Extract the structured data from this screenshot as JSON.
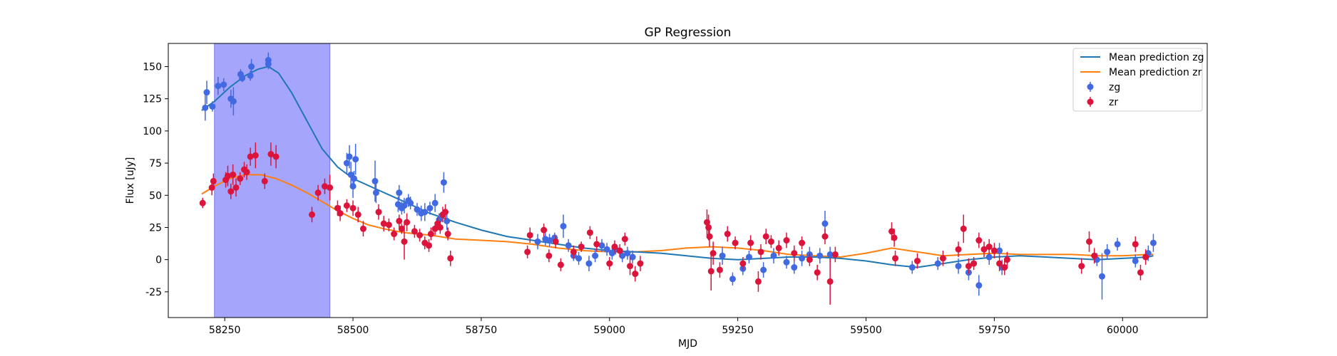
{
  "chart_data": {
    "type": "scatter",
    "title": "GP Regression",
    "xlabel": "MJD",
    "ylabel": "Flux [uJy]",
    "xlim": [
      58140,
      60165
    ],
    "ylim": [
      -45,
      168
    ],
    "xticks": [
      58250,
      58500,
      58750,
      59000,
      59250,
      59500,
      59750,
      60000
    ],
    "yticks": [
      -25,
      0,
      25,
      50,
      75,
      100,
      125,
      150
    ],
    "grid": false,
    "legend_position": "upper right",
    "highlight_span": {
      "x0": 58230,
      "x1": 58455,
      "color": "#a5a5fb"
    },
    "legend": [
      "Mean prediction zg",
      "Mean prediction zr",
      "zg",
      "zr"
    ],
    "series": [
      {
        "name": "Mean prediction zg",
        "kind": "line",
        "color": "#1f77b4",
        "x": [
          58205,
          58230,
          58260,
          58290,
          58315,
          58335,
          58355,
          58380,
          58410,
          58440,
          58470,
          58500,
          58550,
          58600,
          58650,
          58700,
          58750,
          58800,
          58850,
          58900,
          58950,
          59000,
          59050,
          59100,
          59150,
          59200,
          59250,
          59300,
          59350,
          59400,
          59450,
          59500,
          59550,
          59600,
          59650,
          59700,
          59750,
          59800,
          59850,
          59900,
          59950,
          60000,
          60050,
          60060
        ],
        "y": [
          116,
          123,
          134,
          143,
          148,
          150,
          145,
          130,
          108,
          86,
          72,
          63,
          54,
          45,
          36,
          29,
          23,
          18,
          15,
          12,
          9,
          7,
          6,
          5,
          3,
          1,
          0,
          1,
          2,
          2,
          1,
          -1,
          -4,
          -6,
          -3,
          0,
          2,
          3,
          2,
          1,
          0,
          1,
          2,
          3
        ]
      },
      {
        "name": "Mean prediction zr",
        "kind": "line",
        "color": "#ff7f0e",
        "x": [
          58205,
          58230,
          58260,
          58290,
          58320,
          58350,
          58380,
          58410,
          58440,
          58470,
          58500,
          58530,
          58560,
          58600,
          58650,
          58700,
          58750,
          58800,
          58850,
          58900,
          58950,
          59000,
          59050,
          59100,
          59150,
          59200,
          59250,
          59300,
          59350,
          59400,
          59450,
          59500,
          59550,
          59600,
          59650,
          59700,
          59750,
          59800,
          59850,
          59900,
          59950,
          60000,
          60050,
          60060
        ],
        "y": [
          51,
          57,
          63,
          66,
          66,
          63,
          58,
          52,
          45,
          38,
          32,
          27,
          24,
          21,
          19,
          16,
          15,
          14,
          12,
          9,
          7,
          6,
          6,
          7,
          9,
          10,
          9,
          7,
          4,
          3,
          2,
          5,
          9,
          6,
          3,
          4,
          5,
          4,
          4,
          4,
          3,
          3,
          4,
          4
        ]
      },
      {
        "name": "zg",
        "kind": "errorbar",
        "color": "#4169e1",
        "points": [
          [
            58212,
            118,
            10
          ],
          [
            58215,
            130,
            9
          ],
          [
            58226,
            119,
            4
          ],
          [
            58237,
            135,
            7
          ],
          [
            58248,
            136,
            5
          ],
          [
            58262,
            125,
            7
          ],
          [
            58267,
            123,
            11
          ],
          [
            58281,
            144,
            4
          ],
          [
            58284,
            141,
            3
          ],
          [
            58300,
            143,
            4
          ],
          [
            58302,
            150,
            6
          ],
          [
            58335,
            155,
            6
          ],
          [
            58335,
            152,
            4
          ],
          [
            58488,
            75,
            8
          ],
          [
            58493,
            80,
            9
          ],
          [
            58496,
            66,
            10
          ],
          [
            58500,
            57,
            9
          ],
          [
            58502,
            63,
            6
          ],
          [
            58505,
            78,
            12
          ],
          [
            58543,
            61,
            16
          ],
          [
            58545,
            52,
            8
          ],
          [
            58588,
            43,
            6
          ],
          [
            58590,
            52,
            6
          ],
          [
            58595,
            40,
            5
          ],
          [
            58600,
            42,
            6
          ],
          [
            58608,
            46,
            5
          ],
          [
            58612,
            44,
            5
          ],
          [
            58625,
            39,
            5
          ],
          [
            58633,
            36,
            6
          ],
          [
            58640,
            37,
            7
          ],
          [
            58650,
            40,
            5
          ],
          [
            58660,
            44,
            7
          ],
          [
            58668,
            31,
            5
          ],
          [
            58677,
            60,
            8
          ],
          [
            58683,
            30,
            7
          ],
          [
            58860,
            14,
            6
          ],
          [
            58875,
            16,
            5
          ],
          [
            58883,
            15,
            5
          ],
          [
            58893,
            17,
            4
          ],
          [
            58910,
            26,
            9
          ],
          [
            58920,
            11,
            5
          ],
          [
            58930,
            3,
            4
          ],
          [
            58940,
            1,
            5
          ],
          [
            58960,
            -3,
            6
          ],
          [
            58972,
            3,
            5
          ],
          [
            58985,
            11,
            5
          ],
          [
            58995,
            8,
            5
          ],
          [
            59005,
            5,
            5
          ],
          [
            59012,
            8,
            4
          ],
          [
            59025,
            3,
            5
          ],
          [
            59035,
            5,
            5
          ],
          [
            59045,
            2,
            5
          ],
          [
            59220,
            3,
            7
          ],
          [
            59240,
            -15,
            5
          ],
          [
            59260,
            -7,
            5
          ],
          [
            59272,
            2,
            5
          ],
          [
            59300,
            -8,
            6
          ],
          [
            59320,
            3,
            6
          ],
          [
            59345,
            -2,
            5
          ],
          [
            59360,
            -6,
            5
          ],
          [
            59375,
            1,
            6
          ],
          [
            59390,
            4,
            6
          ],
          [
            59410,
            3,
            6
          ],
          [
            59420,
            28,
            10
          ],
          [
            59430,
            4,
            6
          ],
          [
            59590,
            -6,
            5
          ],
          [
            59640,
            -3,
            5
          ],
          [
            59680,
            -5,
            6
          ],
          [
            59700,
            -10,
            6
          ],
          [
            59720,
            -20,
            8
          ],
          [
            59740,
            2,
            6
          ],
          [
            59760,
            7,
            6
          ],
          [
            59765,
            -6,
            6
          ],
          [
            59950,
            0,
            5
          ],
          [
            59960,
            -13,
            18
          ],
          [
            59970,
            6,
            6
          ],
          [
            59990,
            12,
            5
          ],
          [
            60025,
            -1,
            5
          ],
          [
            60050,
            5,
            6
          ],
          [
            60060,
            13,
            7
          ]
        ]
      },
      {
        "name": "zr",
        "kind": "errorbar",
        "color": "#dc143c",
        "points": [
          [
            58207,
            44,
            4
          ],
          [
            58225,
            56,
            6
          ],
          [
            58228,
            61,
            6
          ],
          [
            58252,
            62,
            6
          ],
          [
            58256,
            65,
            8
          ],
          [
            58262,
            53,
            6
          ],
          [
            58266,
            66,
            8
          ],
          [
            58272,
            56,
            7
          ],
          [
            58280,
            63,
            5
          ],
          [
            58288,
            70,
            6
          ],
          [
            58293,
            68,
            6
          ],
          [
            58300,
            80,
            7
          ],
          [
            58310,
            81,
            10
          ],
          [
            58328,
            61,
            6
          ],
          [
            58340,
            82,
            9
          ],
          [
            58350,
            80,
            9
          ],
          [
            58420,
            35,
            6
          ],
          [
            58432,
            52,
            6
          ],
          [
            58445,
            57,
            6
          ],
          [
            58455,
            56,
            10
          ],
          [
            58470,
            40,
            6
          ],
          [
            58475,
            36,
            6
          ],
          [
            58488,
            42,
            5
          ],
          [
            58500,
            40,
            6
          ],
          [
            58510,
            35,
            6
          ],
          [
            58520,
            24,
            6
          ],
          [
            58550,
            37,
            6
          ],
          [
            58560,
            28,
            6
          ],
          [
            58570,
            27,
            5
          ],
          [
            58580,
            20,
            5
          ],
          [
            58590,
            30,
            5
          ],
          [
            58595,
            24,
            4
          ],
          [
            58600,
            14,
            14
          ],
          [
            58605,
            29,
            7
          ],
          [
            58620,
            22,
            5
          ],
          [
            58630,
            19,
            5
          ],
          [
            58640,
            13,
            5
          ],
          [
            58648,
            11,
            5
          ],
          [
            58652,
            20,
            5
          ],
          [
            58660,
            24,
            5
          ],
          [
            58665,
            28,
            5
          ],
          [
            58670,
            25,
            5
          ],
          [
            58675,
            35,
            6
          ],
          [
            58680,
            37,
            6
          ],
          [
            58685,
            20,
            5
          ],
          [
            58690,
            1,
            6
          ],
          [
            58840,
            6,
            5
          ],
          [
            58845,
            19,
            6
          ],
          [
            58872,
            23,
            5
          ],
          [
            58882,
            3,
            5
          ],
          [
            58895,
            14,
            5
          ],
          [
            58905,
            -4,
            5
          ],
          [
            58930,
            6,
            5
          ],
          [
            58945,
            10,
            4
          ],
          [
            58962,
            21,
            5
          ],
          [
            58975,
            12,
            6
          ],
          [
            59000,
            -3,
            5
          ],
          [
            59010,
            10,
            5
          ],
          [
            59020,
            7,
            5
          ],
          [
            59030,
            16,
            5
          ],
          [
            59040,
            -5,
            7
          ],
          [
            59050,
            -11,
            6
          ],
          [
            59060,
            -3,
            6
          ],
          [
            59190,
            29,
            10
          ],
          [
            59193,
            25,
            10
          ],
          [
            59195,
            18,
            8
          ],
          [
            59198,
            -9,
            15
          ],
          [
            59202,
            5,
            9
          ],
          [
            59215,
            -8,
            6
          ],
          [
            59230,
            20,
            6
          ],
          [
            59245,
            13,
            5
          ],
          [
            59260,
            -3,
            5
          ],
          [
            59275,
            13,
            6
          ],
          [
            59290,
            -17,
            8
          ],
          [
            59295,
            6,
            6
          ],
          [
            59305,
            18,
            6
          ],
          [
            59315,
            14,
            5
          ],
          [
            59330,
            9,
            6
          ],
          [
            59345,
            15,
            6
          ],
          [
            59360,
            5,
            6
          ],
          [
            59375,
            13,
            5
          ],
          [
            59390,
            0,
            5
          ],
          [
            59405,
            -10,
            6
          ],
          [
            59420,
            18,
            6
          ],
          [
            59430,
            -17,
            18
          ],
          [
            59440,
            4,
            6
          ],
          [
            59550,
            22,
            7
          ],
          [
            59555,
            17,
            7
          ],
          [
            59557,
            1,
            6
          ],
          [
            59600,
            -1,
            6
          ],
          [
            59650,
            1,
            6
          ],
          [
            59680,
            8,
            6
          ],
          [
            59690,
            24,
            11
          ],
          [
            59700,
            -5,
            6
          ],
          [
            59710,
            -3,
            5
          ],
          [
            59720,
            15,
            6
          ],
          [
            59730,
            8,
            6
          ],
          [
            59740,
            10,
            6
          ],
          [
            59750,
            7,
            6
          ],
          [
            59760,
            -3,
            6
          ],
          [
            59770,
            -6,
            6
          ],
          [
            59775,
            0,
            6
          ],
          [
            59920,
            -5,
            6
          ],
          [
            59935,
            14,
            8
          ],
          [
            59945,
            3,
            6
          ],
          [
            60025,
            12,
            6
          ],
          [
            60035,
            -10,
            6
          ],
          [
            60045,
            2,
            6
          ]
        ]
      }
    ]
  }
}
